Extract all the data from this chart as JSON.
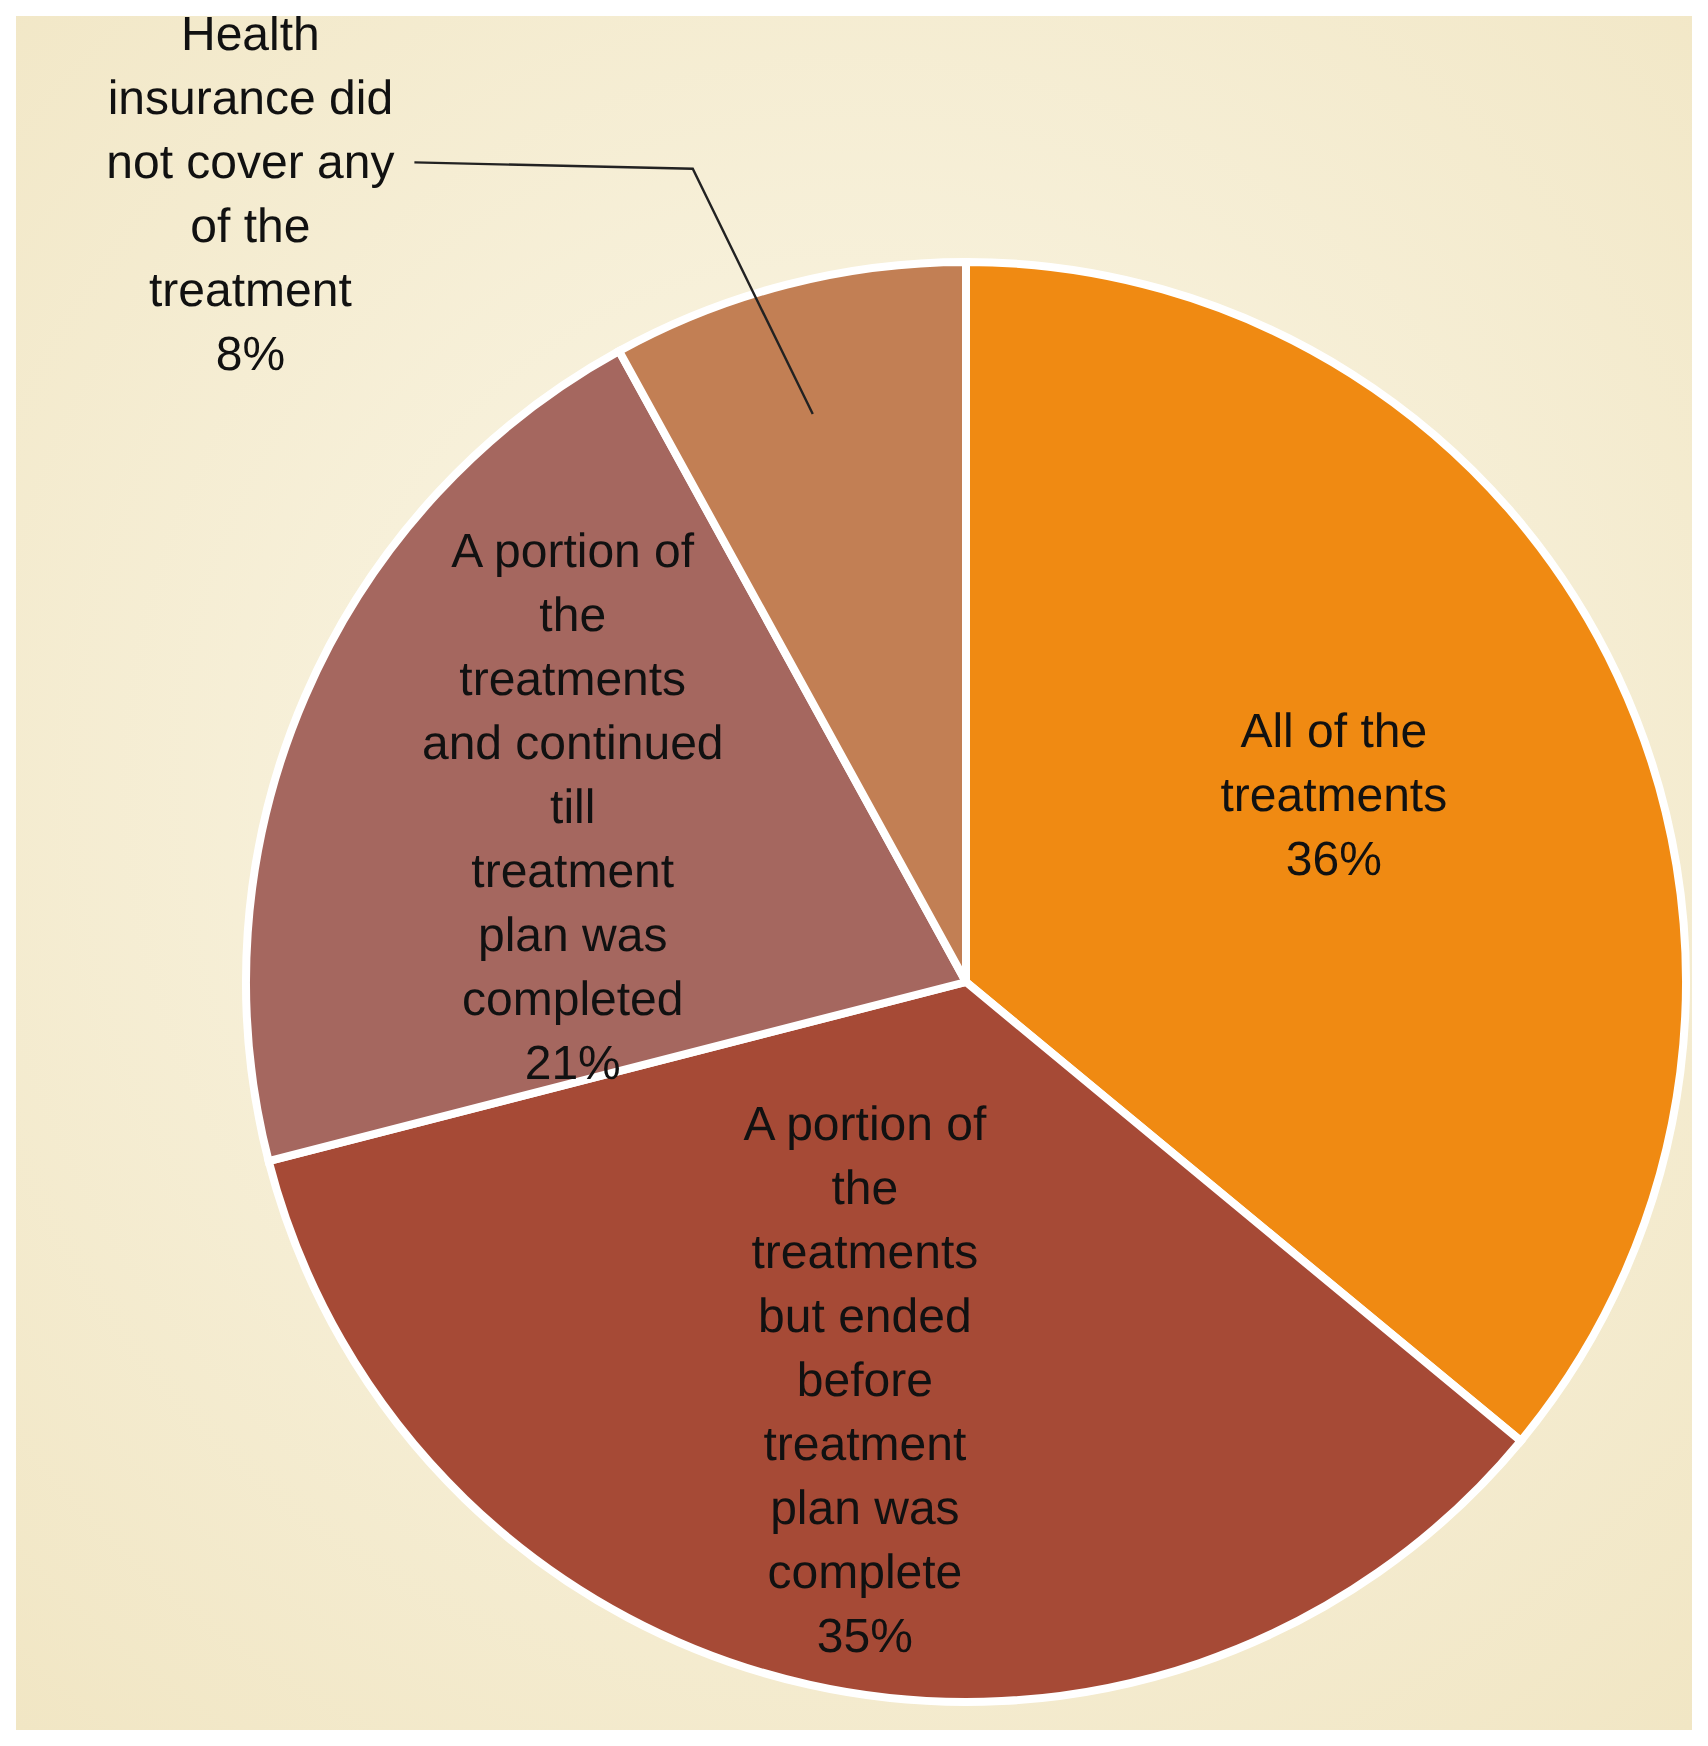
{
  "chart_data": {
    "type": "pie",
    "categories": [
      "All of the treatments",
      "A portion of the treatments but ended before treatment plan was complete",
      "A portion of the treatments and continued till treatment plan was completed",
      "Health insurance did not cover any of the treatment"
    ],
    "values": [
      36,
      35,
      21,
      8
    ],
    "value_labels": [
      "36%",
      "35%",
      "21%",
      "8%"
    ],
    "colors": [
      "#f08a12",
      "#a64a36",
      "#a5675f",
      "#c27f54"
    ],
    "legend": false
  }
}
